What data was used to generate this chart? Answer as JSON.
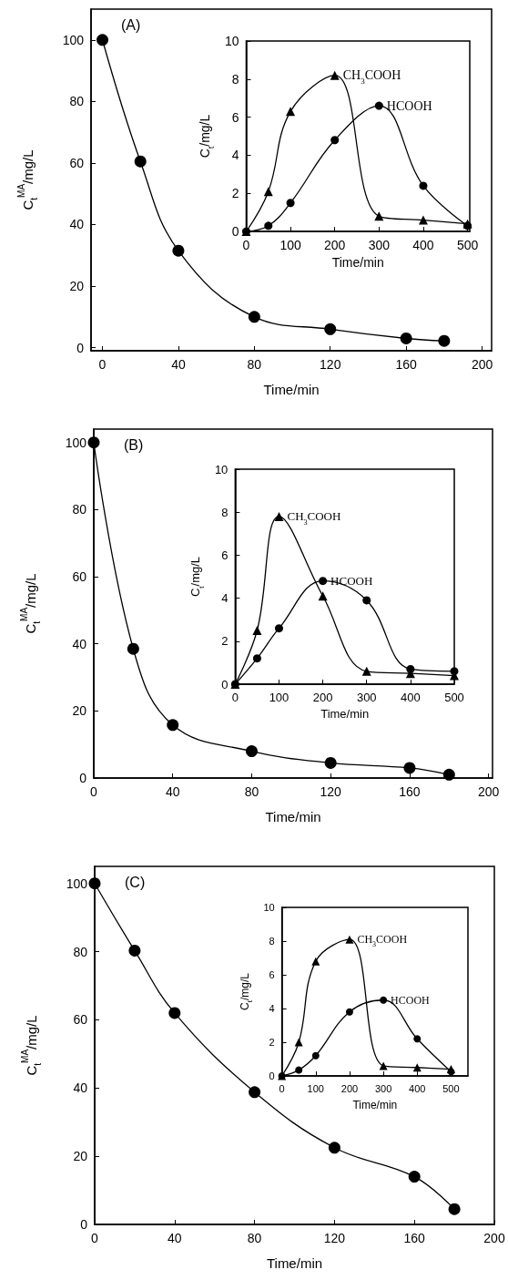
{
  "chart_data": [
    {
      "type": "line",
      "title": "(A)",
      "xlabel": "Time/min",
      "ylabel": "C$_{t}$$^{MA}$/mg/L",
      "x": [
        0,
        20,
        40,
        80,
        120,
        160,
        180
      ],
      "series": [
        {
          "color": "#000000",
          "marker": "circle",
          "values": [
            100,
            60.5,
            31.5,
            10,
            6,
            3,
            2.2
          ]
        }
      ],
      "xlim": [
        -6,
        205
      ],
      "ylim": [
        -1,
        110
      ],
      "xticks": [
        0,
        40,
        80,
        120,
        160,
        200
      ],
      "yticks": [
        0,
        20,
        40,
        60,
        80,
        100
      ]
    },
    {
      "type": "line",
      "xlabel": "Time/min",
      "ylabel": "C$_{t}$/mg/L",
      "x": [
        0,
        50,
        100,
        200,
        300,
        400,
        500
      ],
      "series": [
        {
          "name": "HCOOH",
          "color": "#000000",
          "marker": "circle",
          "values": [
            0,
            0.3,
            1.5,
            4.8,
            6.6,
            2.4,
            0.3
          ]
        },
        {
          "name": "CH$_{3}$COOH",
          "color": "#000000",
          "marker": "triangle",
          "values": [
            0,
            2.1,
            6.3,
            8.2,
            0.8,
            0.6,
            0.4
          ]
        }
      ],
      "xlim": [
        0,
        505
      ],
      "ylim": [
        0,
        10
      ],
      "xticks": [
        0,
        100,
        200,
        300,
        400,
        500
      ],
      "yticks": [
        0,
        2,
        4,
        6,
        8,
        10
      ]
    },
    {
      "type": "line",
      "title": "(B)",
      "xlabel": "Time/min",
      "ylabel": "C$_{t}$$^{MA}$/mg/L",
      "x": [
        0,
        20,
        40,
        80,
        120,
        160,
        180
      ],
      "series": [
        {
          "color": "#000000",
          "marker": "circle",
          "values": [
            100,
            38.5,
            15.8,
            8,
            4.5,
            3,
            1
          ]
        }
      ],
      "xlim": [
        0,
        202
      ],
      "ylim": [
        0,
        104
      ],
      "xticks": [
        0,
        40,
        80,
        120,
        160,
        200
      ],
      "yticks": [
        0,
        20,
        40,
        60,
        80,
        100
      ]
    },
    {
      "type": "line",
      "xlabel": "Time/min",
      "ylabel": "C$_{t}$/mg/L",
      "x": [
        0,
        50,
        100,
        200,
        300,
        400,
        500
      ],
      "series": [
        {
          "name": "CH$_{3}$COOH",
          "color": "#000000",
          "marker": "triangle",
          "values": [
            0,
            2.5,
            7.8,
            4.1,
            0.6,
            0.5,
            0.4
          ]
        },
        {
          "name": "HCOOH",
          "color": "#000000",
          "marker": "circle",
          "values": [
            0,
            1.2,
            2.6,
            4.8,
            3.9,
            0.7,
            0.6
          ]
        }
      ],
      "xlim": [
        0,
        500
      ],
      "ylim": [
        0,
        10
      ],
      "xticks": [
        0,
        100,
        200,
        300,
        400,
        500
      ],
      "yticks": [
        0,
        2,
        4,
        6,
        8,
        10
      ]
    },
    {
      "type": "line",
      "title": "(C)",
      "xlabel": "Time/min",
      "ylabel": "C$_{t}$$^{MA}$/mg/L",
      "x": [
        0,
        20,
        40,
        80,
        120,
        160,
        180
      ],
      "series": [
        {
          "color": "#000000",
          "marker": "circle",
          "values": [
            100,
            80.3,
            62,
            38.8,
            22.5,
            14,
            4.5
          ]
        }
      ],
      "xlim": [
        0,
        200
      ],
      "ylim": [
        0,
        105
      ],
      "xticks": [
        0,
        40,
        80,
        120,
        160,
        200
      ],
      "yticks": [
        0,
        20,
        40,
        60,
        80,
        100
      ]
    },
    {
      "type": "line",
      "xlabel": "Time/min",
      "ylabel": "C$_{t}$/mg/L",
      "x": [
        0,
        50,
        100,
        200,
        300,
        400,
        500
      ],
      "series": [
        {
          "name": "CH$_{3}$COOH",
          "color": "#000000",
          "marker": "triangle",
          "values": [
            0,
            2.0,
            6.8,
            8.1,
            0.6,
            0.5,
            0.4
          ]
        },
        {
          "name": "HCOOH",
          "color": "#000000",
          "marker": "circle",
          "values": [
            0,
            0.35,
            1.2,
            3.8,
            4.5,
            2.2,
            0.25
          ]
        }
      ],
      "xlim": [
        0,
        550
      ],
      "ylim": [
        0,
        10
      ],
      "xticks": [
        0,
        100,
        200,
        300,
        400,
        500
      ],
      "yticks": [
        0,
        2,
        4,
        6,
        8,
        10
      ]
    }
  ]
}
